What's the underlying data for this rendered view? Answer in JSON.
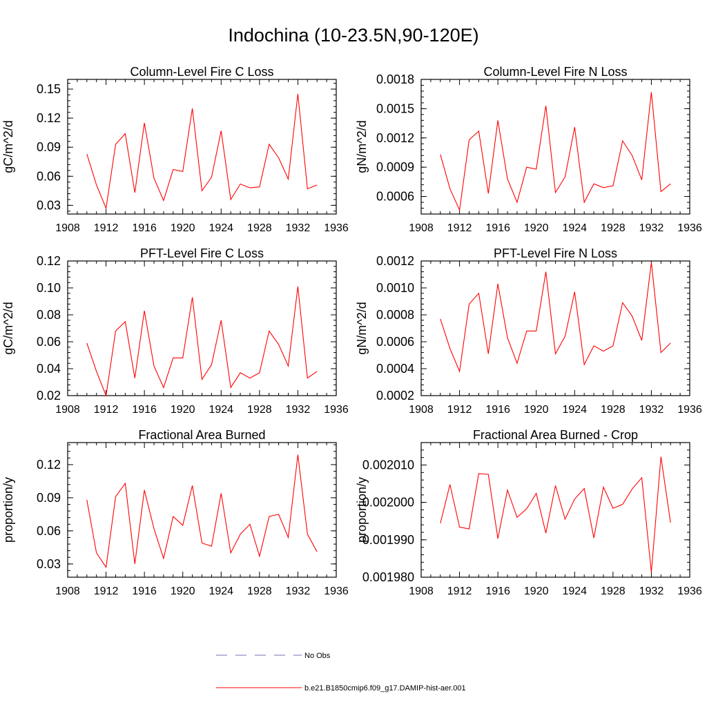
{
  "title": "Indochina (10-23.5N,90-120E)",
  "colors": {
    "series": "#ff0000",
    "obs": "#6f6fb8",
    "axis": "#000000"
  },
  "legend": {
    "entries": [
      {
        "label": "No Obs",
        "style": "dashed",
        "color": "#6f6fb8"
      },
      {
        "label": "b.e21.B1850cmip6.f09_g17.DAMIP-hist-aer.001",
        "style": "solid",
        "color": "#ff0000"
      }
    ]
  },
  "chart_data": [
    {
      "type": "line",
      "title": "Column-Level Fire C Loss",
      "ylabel": "gC/m^2/d",
      "xlim": [
        1908,
        1936
      ],
      "xticks": [
        "1908",
        "1912",
        "1916",
        "1920",
        "1924",
        "1928",
        "1932",
        "1936"
      ],
      "ylim": [
        0.021,
        0.16
      ],
      "yticks": [
        "0.03",
        "0.06",
        "0.09",
        "0.12",
        "0.15"
      ],
      "x": [
        1910,
        1911,
        1912,
        1913,
        1914,
        1915,
        1916,
        1917,
        1918,
        1919,
        1920,
        1921,
        1922,
        1923,
        1924,
        1925,
        1926,
        1927,
        1928,
        1929,
        1930,
        1931,
        1932,
        1933,
        1934
      ],
      "series": [
        {
          "values": [
            0.083,
            0.051,
            0.027,
            0.093,
            0.104,
            0.043,
            0.115,
            0.058,
            0.035,
            0.067,
            0.065,
            0.13,
            0.045,
            0.059,
            0.107,
            0.036,
            0.052,
            0.048,
            0.049,
            0.093,
            0.079,
            0.057,
            0.145,
            0.047,
            0.051
          ]
        }
      ]
    },
    {
      "type": "line",
      "title": "Column-Level Fire N Loss",
      "ylabel": "gN/m^2/d",
      "xlim": [
        1908,
        1936
      ],
      "xticks": [
        "1908",
        "1912",
        "1916",
        "1920",
        "1924",
        "1928",
        "1932",
        "1936"
      ],
      "ylim": [
        0.00042,
        0.0018
      ],
      "yticks": [
        "0.0006",
        "0.0009",
        "0.0012",
        "0.0015",
        "0.0018"
      ],
      "x": [
        1910,
        1911,
        1912,
        1913,
        1914,
        1915,
        1916,
        1917,
        1918,
        1919,
        1920,
        1921,
        1922,
        1923,
        1924,
        1925,
        1926,
        1927,
        1928,
        1929,
        1930,
        1931,
        1932,
        1933,
        1934
      ],
      "series": [
        {
          "values": [
            0.00103,
            0.00068,
            0.00046,
            0.00118,
            0.00127,
            0.00063,
            0.00138,
            0.00078,
            0.00054,
            0.0009,
            0.00088,
            0.00153,
            0.00064,
            0.0008,
            0.00131,
            0.00054,
            0.00073,
            0.00069,
            0.00071,
            0.00117,
            0.00102,
            0.00077,
            0.00167,
            0.00065,
            0.00073
          ]
        }
      ]
    },
    {
      "type": "line",
      "title": "PFT-Level Fire C Loss",
      "ylabel": "gC/m^2/d",
      "xlim": [
        1908,
        1936
      ],
      "xticks": [
        "1908",
        "1912",
        "1916",
        "1920",
        "1924",
        "1928",
        "1932",
        "1936"
      ],
      "ylim": [
        0.02,
        0.12
      ],
      "yticks": [
        "0.02",
        "0.04",
        "0.06",
        "0.08",
        "0.10",
        "0.12"
      ],
      "x": [
        1910,
        1911,
        1912,
        1913,
        1914,
        1915,
        1916,
        1917,
        1918,
        1919,
        1920,
        1921,
        1922,
        1923,
        1924,
        1925,
        1926,
        1927,
        1928,
        1929,
        1930,
        1931,
        1932,
        1933,
        1934
      ],
      "series": [
        {
          "values": [
            0.059,
            0.038,
            0.02,
            0.068,
            0.075,
            0.033,
            0.083,
            0.042,
            0.026,
            0.048,
            0.048,
            0.093,
            0.032,
            0.043,
            0.076,
            0.026,
            0.037,
            0.033,
            0.037,
            0.068,
            0.058,
            0.042,
            0.101,
            0.033,
            0.038
          ]
        }
      ]
    },
    {
      "type": "line",
      "title": "PFT-Level Fire N Loss",
      "ylabel": "gN/m^2/d",
      "xlim": [
        1908,
        1936
      ],
      "xticks": [
        "1908",
        "1912",
        "1916",
        "1920",
        "1924",
        "1928",
        "1932",
        "1936"
      ],
      "ylim": [
        0.0002,
        0.0012
      ],
      "yticks": [
        "0.0002",
        "0.0004",
        "0.0006",
        "0.0008",
        "0.0010",
        "0.0012"
      ],
      "x": [
        1910,
        1911,
        1912,
        1913,
        1914,
        1915,
        1916,
        1917,
        1918,
        1919,
        1920,
        1921,
        1922,
        1923,
        1924,
        1925,
        1926,
        1927,
        1928,
        1929,
        1930,
        1931,
        1932,
        1933,
        1934
      ],
      "series": [
        {
          "values": [
            0.00077,
            0.00055,
            0.00038,
            0.00088,
            0.00096,
            0.00051,
            0.00103,
            0.00063,
            0.00044,
            0.00068,
            0.00068,
            0.00112,
            0.00051,
            0.00064,
            0.00097,
            0.00043,
            0.00057,
            0.00053,
            0.00057,
            0.00089,
            0.00079,
            0.00061,
            0.00119,
            0.00052,
            0.00059
          ]
        }
      ]
    },
    {
      "type": "line",
      "title": "Fractional Area Burned",
      "ylabel": "proportion/y",
      "xlim": [
        1908,
        1936
      ],
      "xticks": [
        "1908",
        "1912",
        "1916",
        "1920",
        "1924",
        "1928",
        "1932",
        "1936"
      ],
      "ylim": [
        0.018,
        0.14
      ],
      "yticks": [
        "0.03",
        "0.06",
        "0.09",
        "0.12"
      ],
      "x": [
        1910,
        1911,
        1912,
        1913,
        1914,
        1915,
        1916,
        1917,
        1918,
        1919,
        1920,
        1921,
        1922,
        1923,
        1924,
        1925,
        1926,
        1927,
        1928,
        1929,
        1930,
        1931,
        1932,
        1933,
        1934
      ],
      "series": [
        {
          "values": [
            0.088,
            0.04,
            0.027,
            0.091,
            0.103,
            0.03,
            0.097,
            0.062,
            0.035,
            0.073,
            0.065,
            0.101,
            0.049,
            0.046,
            0.094,
            0.04,
            0.057,
            0.066,
            0.037,
            0.073,
            0.075,
            0.054,
            0.129,
            0.057,
            0.041
          ]
        }
      ]
    },
    {
      "type": "line",
      "title": "Fractional Area Burned - Crop",
      "ylabel": "proportion/y",
      "xlim": [
        1908,
        1936
      ],
      "xticks": [
        "1908",
        "1912",
        "1916",
        "1920",
        "1924",
        "1928",
        "1932",
        "1936"
      ],
      "ylim": [
        0.00198,
        0.002016
      ],
      "yticks": [
        "0.001980",
        "0.001990",
        "0.002000",
        "0.002010"
      ],
      "x": [
        1910,
        1911,
        1912,
        1913,
        1914,
        1915,
        1916,
        1917,
        1918,
        1919,
        1920,
        1921,
        1922,
        1923,
        1924,
        1925,
        1926,
        1927,
        1928,
        1929,
        1930,
        1931,
        1932,
        1933,
        1934
      ],
      "series": [
        {
          "values": [
            0.0019944,
            0.0020048,
            0.0019934,
            0.0019929,
            0.0020077,
            0.0020075,
            0.0019903,
            0.0020033,
            0.001996,
            0.0019983,
            0.0020024,
            0.0019918,
            0.0020045,
            0.0019955,
            0.0020009,
            0.0020037,
            0.0019905,
            0.0020041,
            0.0019984,
            0.0019995,
            0.0020036,
            0.0020066,
            0.0019813,
            0.0020122,
            0.0019946
          ]
        }
      ]
    }
  ]
}
